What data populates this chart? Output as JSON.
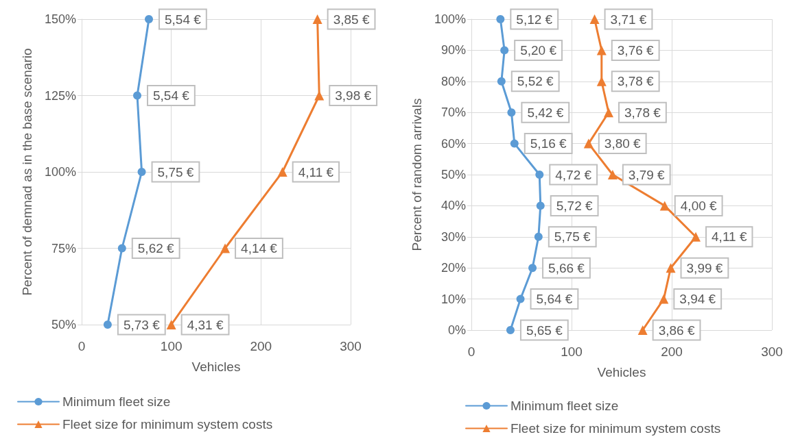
{
  "chart_data": [
    {
      "type": "line",
      "orientation": "horizontal",
      "xlabel": "Vehicles",
      "ylabel": "Percent of demnad as in the base scenario",
      "categories": [
        "150%",
        "125%",
        "100%",
        "75%",
        "50%"
      ],
      "xlim": [
        0,
        300
      ],
      "xticks": [
        0,
        100,
        200,
        300
      ],
      "grid": true,
      "legend": "bottom",
      "series": [
        {
          "name": "Minimum fleet size",
          "color": "#5b9bd5",
          "marker": "circle",
          "values": [
            75,
            62,
            67,
            45,
            29
          ]
        },
        {
          "name": "Fleet size for minimum system costs",
          "color": "#ed7d31",
          "marker": "triangle",
          "values": [
            263,
            265,
            224,
            160,
            100
          ]
        }
      ],
      "annotations": [
        {
          "text": "5,54 €",
          "x": 75,
          "y": "150%"
        },
        {
          "text": "5,54 €",
          "x": 62,
          "y": "125%"
        },
        {
          "text": "5,75 €",
          "x": 67,
          "y": "100%"
        },
        {
          "text": "5,62 €",
          "x": 45,
          "y": "75%"
        },
        {
          "text": "5,73 €",
          "x": 29,
          "y": "50%"
        },
        {
          "text": "3,85 €",
          "x": 263,
          "y": "150%"
        },
        {
          "text": "3,98 €",
          "x": 265,
          "y": "125%"
        },
        {
          "text": "4,11 €",
          "x": 224,
          "y": "100%"
        },
        {
          "text": "4,14 €",
          "x": 160,
          "y": "75%"
        },
        {
          "text": "4,31 €",
          "x": 100,
          "y": "50%"
        }
      ]
    },
    {
      "type": "line",
      "orientation": "horizontal",
      "xlabel": "Vehicles",
      "ylabel": "Percent of random arrivals",
      "categories": [
        "100%",
        "90%",
        "80%",
        "70%",
        "60%",
        "50%",
        "40%",
        "30%",
        "20%",
        "10%",
        "0%"
      ],
      "xlim": [
        0,
        300
      ],
      "xticks": [
        0,
        100,
        200,
        300
      ],
      "grid": true,
      "legend": "bottom",
      "series": [
        {
          "name": "Minimum fleet size",
          "color": "#5b9bd5",
          "marker": "circle",
          "values": [
            29,
            33,
            30,
            40,
            43,
            68,
            69,
            67,
            61,
            49,
            39
          ]
        },
        {
          "name": "Fleet size for minimum system costs",
          "color": "#ed7d31",
          "marker": "triangle",
          "values": [
            123,
            130,
            130,
            137,
            117,
            141,
            193,
            224,
            199,
            192,
            171
          ]
        }
      ],
      "annotations": [
        {
          "text": "5,12 €",
          "x": 29,
          "y": "100%"
        },
        {
          "text": "5,20 €",
          "x": 33,
          "y": "90%"
        },
        {
          "text": "5,52 €",
          "x": 30,
          "y": "80%"
        },
        {
          "text": "5,42 €",
          "x": 40,
          "y": "70%"
        },
        {
          "text": "5,16 €",
          "x": 43,
          "y": "60%"
        },
        {
          "text": "4,72 €",
          "x": 68,
          "y": "50%"
        },
        {
          "text": "5,72 €",
          "x": 69,
          "y": "40%"
        },
        {
          "text": "5,75 €",
          "x": 67,
          "y": "30%"
        },
        {
          "text": "5,66 €",
          "x": 61,
          "y": "20%"
        },
        {
          "text": "5,64 €",
          "x": 49,
          "y": "10%"
        },
        {
          "text": "5,65 €",
          "x": 39,
          "y": "0%"
        },
        {
          "text": "3,71 €",
          "x": 123,
          "y": "100%"
        },
        {
          "text": "3,76 €",
          "x": 130,
          "y": "90%"
        },
        {
          "text": "3,78 €",
          "x": 130,
          "y": "80%"
        },
        {
          "text": "3,78 €",
          "x": 137,
          "y": "70%"
        },
        {
          "text": "3,80 €",
          "x": 117,
          "y": "60%"
        },
        {
          "text": "3,79 €",
          "x": 141,
          "y": "50%"
        },
        {
          "text": "4,00 €",
          "x": 193,
          "y": "40%"
        },
        {
          "text": "4,11 €",
          "x": 224,
          "y": "30%"
        },
        {
          "text": "3,99 €",
          "x": 199,
          "y": "20%"
        },
        {
          "text": "3,94 €",
          "x": 192,
          "y": "10%"
        },
        {
          "text": "3,86 €",
          "x": 171,
          "y": "0%"
        }
      ]
    }
  ]
}
